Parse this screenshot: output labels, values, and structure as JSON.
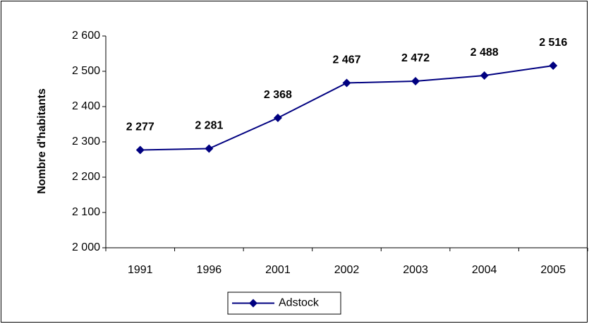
{
  "chart_data": {
    "type": "line",
    "y_label": "Nombre d'habitants",
    "categories": [
      "1991",
      "1996",
      "2001",
      "2002",
      "2003",
      "2004",
      "2005"
    ],
    "series": [
      {
        "name": "Adstock",
        "color": "#000080",
        "values": [
          2277,
          2281,
          2368,
          2467,
          2472,
          2488,
          2516
        ],
        "value_labels": [
          "2 277",
          "2 281",
          "2 368",
          "2 467",
          "2 472",
          "2 488",
          "2 516"
        ]
      }
    ],
    "ylim": [
      2000,
      2600
    ],
    "yticks": [
      {
        "value": 2000,
        "label": "2 000"
      },
      {
        "value": 2100,
        "label": "2 100"
      },
      {
        "value": 2200,
        "label": "2 200"
      },
      {
        "value": 2300,
        "label": "2 300"
      },
      {
        "value": 2400,
        "label": "2 400"
      },
      {
        "value": 2500,
        "label": "2 500"
      },
      {
        "value": 2600,
        "label": "2 600"
      }
    ],
    "grid": false
  }
}
